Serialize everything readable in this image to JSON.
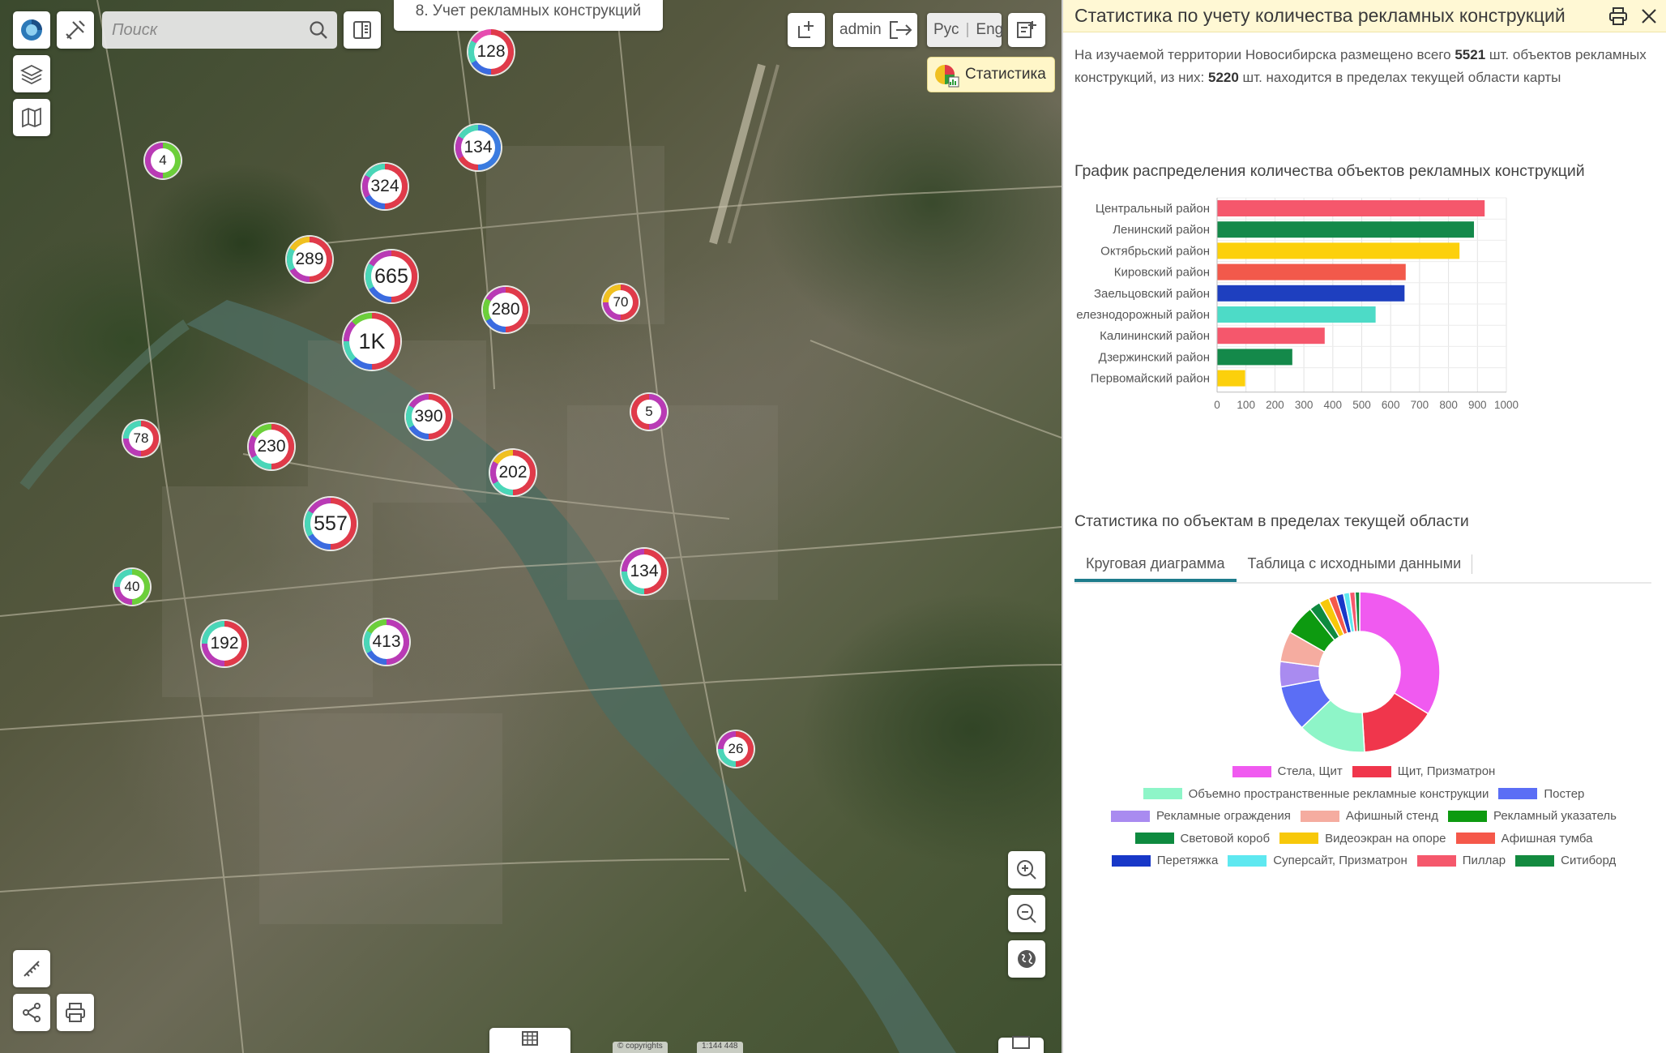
{
  "map": {
    "search_placeholder": "Поиск",
    "layer_title": "8. Учет рекламных конструкций",
    "user": "admin",
    "lang_ru": "Рус",
    "lang_en": "Eng",
    "stats_button": "Статистика",
    "attribution_1": "© copyrights",
    "attribution_2": "1:144 448"
  },
  "clusters": [
    {
      "label": "128",
      "size": "m",
      "colors": [
        "#e03a4a",
        "#3b6be0",
        "#4ad6b8",
        "#e64db0"
      ]
    },
    {
      "label": "4",
      "size": "s",
      "colors": [
        "#6ccf3a",
        "#b93ab5"
      ]
    },
    {
      "label": "134",
      "size": "m",
      "colors": [
        "#3a7be0",
        "#e03a4a",
        "#b93ab5",
        "#4ad6b8"
      ]
    },
    {
      "label": "324",
      "size": "m",
      "colors": [
        "#e03a4a",
        "#3b6be0",
        "#b93ab5",
        "#4ad6b8"
      ]
    },
    {
      "label": "289",
      "size": "m",
      "colors": [
        "#e03a4a",
        "#b93ab5",
        "#4ad6b8",
        "#f0c020"
      ]
    },
    {
      "label": "665",
      "size": "l",
      "colors": [
        "#e03a4a",
        "#3b6be0",
        "#4ad6b8",
        "#b93ab5"
      ]
    },
    {
      "label": "280",
      "size": "m",
      "colors": [
        "#e03a4a",
        "#3b6be0",
        "#6ccf3a",
        "#b93ab5"
      ]
    },
    {
      "label": "70",
      "size": "s",
      "colors": [
        "#e03a4a",
        "#b93ab5",
        "#f0c020"
      ]
    },
    {
      "label": "1K",
      "size": "xl",
      "colors": [
        "#e03a4a",
        "#3b6be0",
        "#4ad6b8",
        "#b93ab5",
        "#6ccf3a"
      ]
    },
    {
      "label": "5",
      "size": "s",
      "colors": [
        "#b93ab5",
        "#e03a4a"
      ]
    },
    {
      "label": "390",
      "size": "m",
      "colors": [
        "#e03a4a",
        "#3b6be0",
        "#4ad6b8",
        "#b93ab5"
      ]
    },
    {
      "label": "78",
      "size": "s",
      "colors": [
        "#e03a4a",
        "#b93ab5",
        "#4ad6b8"
      ]
    },
    {
      "label": "230",
      "size": "m",
      "colors": [
        "#e03a4a",
        "#4ad6b8",
        "#b93ab5",
        "#6ccf3a"
      ]
    },
    {
      "label": "202",
      "size": "m",
      "colors": [
        "#e03a4a",
        "#4ad6b8",
        "#b93ab5",
        "#f0c020"
      ]
    },
    {
      "label": "557",
      "size": "l",
      "colors": [
        "#e03a4a",
        "#3b6be0",
        "#4ad6b8",
        "#b93ab5"
      ]
    },
    {
      "label": "134",
      "size": "m",
      "colors": [
        "#e03a4a",
        "#4ad6b8",
        "#b93ab5"
      ]
    },
    {
      "label": "40",
      "size": "s",
      "colors": [
        "#6ccf3a",
        "#b93ab5",
        "#4ad6b8"
      ]
    },
    {
      "label": "192",
      "size": "m",
      "colors": [
        "#e03a4a",
        "#b93ab5",
        "#4ad6b8"
      ]
    },
    {
      "label": "413",
      "size": "m",
      "colors": [
        "#b93ab5",
        "#3b6be0",
        "#4ad6b8",
        "#6ccf3a"
      ]
    },
    {
      "label": "26",
      "size": "s",
      "colors": [
        "#e03a4a",
        "#4ad6b8",
        "#b93ab5"
      ]
    }
  ],
  "panel": {
    "title": "Статистика по учету количества рекламных конструкций",
    "summary_prefix": "На изучаемой территории Новосибирска размещено всего ",
    "total": "5521",
    "summary_middle": " шт. объектов рекламных конструкций, из них: ",
    "in_view": "5220",
    "summary_suffix": " шт. находится в пределах текущей области карты",
    "bar_section_title": "График распределения количества объектов рекламных конструкций",
    "pie_section_title": "Статистика по объектам в пределах текущей области",
    "tab_pie": "Круговая диаграмма",
    "tab_table": "Таблица с исходными данными"
  },
  "chart_data": [
    {
      "type": "bar",
      "orientation": "horizontal",
      "categories": [
        "Центральный район",
        "Ленинский район",
        "Октябрьский район",
        "Кировский район",
        "Заельцовский район",
        "елезнодорожный район",
        "Калининский район",
        "Дзержинский район",
        "Первомайский район"
      ],
      "values": [
        925,
        888,
        838,
        652,
        648,
        548,
        372,
        260,
        97
      ],
      "colors": [
        "#f5576c",
        "#14894a",
        "#fcd00c",
        "#f2594b",
        "#1e3fbf",
        "#4ddbc7",
        "#f5576c",
        "#14894a",
        "#fcd00c"
      ],
      "xticks": [
        0,
        100,
        200,
        300,
        400,
        500,
        600,
        700,
        800,
        900,
        1000
      ],
      "xlim": [
        0,
        1000
      ],
      "grid": true
    },
    {
      "type": "pie",
      "donut": true,
      "labels": [
        "Стела, Щит",
        "Щит, Призматрон",
        "Объемно пространственные рекламные конструкции",
        "Постер",
        "Рекламные ограждения",
        "Афишный стенд",
        "Рекламный указатель",
        "Световой короб",
        "Видеоэкран на опоре",
        "Афишная тумба",
        "Перетяжка",
        "Суперсайт, Призматрон",
        "Пиллар",
        "Ситиборд"
      ],
      "values": [
        33,
        15,
        13.5,
        9,
        5,
        6,
        6,
        2.2,
        2,
        1.5,
        1.5,
        1.2,
        1.1,
        0.9
      ],
      "colors": [
        "#f05af0",
        "#f0364c",
        "#8ef5c8",
        "#5b6ef5",
        "#a98bf0",
        "#f5aca0",
        "#0d9a10",
        "#0e8a3f",
        "#f7c80a",
        "#f5584a",
        "#1838c8",
        "#5ee8f0",
        "#f5586c",
        "#138a3f"
      ]
    }
  ]
}
